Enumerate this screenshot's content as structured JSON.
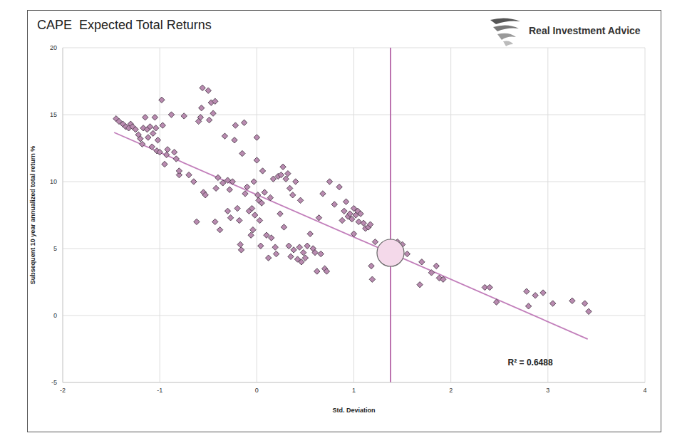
{
  "chart_data": {
    "type": "scatter",
    "title": "CAPE  Expected Total Returns",
    "brand": "Real Investment Advice",
    "x_label": "Std. Deviation",
    "y_label": "Subsequent 10 year annualized total return %",
    "xlim": [
      -2,
      4
    ],
    "xticks": [
      -2,
      -1,
      0,
      1,
      2,
      3,
      4
    ],
    "ylim": [
      -5,
      20
    ],
    "yticks": [
      -5,
      0,
      5,
      10,
      15,
      20
    ],
    "grid": true,
    "color": "#b98bb0",
    "marker": "diamond",
    "x": [
      -1.45,
      -1.42,
      -1.38,
      -1.35,
      -1.32,
      -1.3,
      -1.28,
      -1.25,
      -1.22,
      -1.2,
      -1.18,
      -1.17,
      -1.15,
      -1.13,
      -1.12,
      -1.1,
      -1.08,
      -1.07,
      -1.05,
      -1.04,
      -1.03,
      -1.02,
      -1.0,
      -0.98,
      -0.97,
      -0.95,
      -0.93,
      -0.92,
      -0.88,
      -0.85,
      -0.83,
      -0.8,
      -0.8,
      -0.75,
      -0.7,
      -0.65,
      -0.62,
      -0.6,
      -0.58,
      -0.57,
      -0.56,
      -0.55,
      -0.53,
      -0.5,
      -0.49,
      -0.47,
      -0.45,
      -0.43,
      -0.42,
      -0.43,
      -0.4,
      -0.38,
      -0.35,
      -0.33,
      -0.3,
      -0.3,
      -0.28,
      -0.27,
      -0.25,
      -0.23,
      -0.22,
      -0.2,
      -0.18,
      -0.17,
      -0.16,
      -0.15,
      -0.13,
      -0.12,
      -0.1,
      -0.08,
      -0.06,
      -0.05,
      -0.04,
      -0.03,
      -0.02,
      0.0,
      0.0,
      0.01,
      0.02,
      0.03,
      0.04,
      0.05,
      0.06,
      0.08,
      0.1,
      0.12,
      0.14,
      0.15,
      0.17,
      0.19,
      0.2,
      0.22,
      0.24,
      0.25,
      0.27,
      0.28,
      0.3,
      0.32,
      0.33,
      0.34,
      0.35,
      0.37,
      0.38,
      0.4,
      0.42,
      0.44,
      0.45,
      0.46,
      0.48,
      0.5,
      0.52,
      0.55,
      0.58,
      0.6,
      0.62,
      0.64,
      0.66,
      0.68,
      0.7,
      0.72,
      0.75,
      0.8,
      0.85,
      0.88,
      0.9,
      0.92,
      0.94,
      0.96,
      0.98,
      1.0,
      1.0,
      1.02,
      1.04,
      1.05,
      1.07,
      1.1,
      1.12,
      1.15,
      1.17,
      1.18,
      1.19,
      1.22,
      1.45,
      1.5,
      1.55,
      1.68,
      1.7,
      1.8,
      1.85,
      1.88,
      1.92,
      2.35,
      2.4,
      2.47,
      2.78,
      2.8,
      2.87,
      2.95,
      3.05,
      3.25,
      3.38,
      3.42
    ],
    "values": [
      14.7,
      14.5,
      14.3,
      14.1,
      14.0,
      14.3,
      14.1,
      13.9,
      13.5,
      13.2,
      12.8,
      14.0,
      14.8,
      13.9,
      13.3,
      14.1,
      12.6,
      13.6,
      14.8,
      14.0,
      12.3,
      13.1,
      12.2,
      16.1,
      14.2,
      11.3,
      12.0,
      12.4,
      15.0,
      12.2,
      11.7,
      10.5,
      10.8,
      14.9,
      10.5,
      10.0,
      7.0,
      14.5,
      14.8,
      15.5,
      17.0,
      9.2,
      9.0,
      16.8,
      14.6,
      15.9,
      15.1,
      16.0,
      9.5,
      7.0,
      10.3,
      6.4,
      9.9,
      13.4,
      10.1,
      7.8,
      9.4,
      7.3,
      10.0,
      13.1,
      14.2,
      8.0,
      7.1,
      5.3,
      4.9,
      12.1,
      14.4,
      9.1,
      9.6,
      7.8,
      6.0,
      8.0,
      6.4,
      10.0,
      7.5,
      11.6,
      13.3,
      9.0,
      8.6,
      7.1,
      5.2,
      8.4,
      10.8,
      9.2,
      6.0,
      4.3,
      8.8,
      5.8,
      10.2,
      5.1,
      4.6,
      10.4,
      7.6,
      10.5,
      11.1,
      6.6,
      10.2,
      10.6,
      5.2,
      9.5,
      4.4,
      9.0,
      4.9,
      10.0,
      4.2,
      5.1,
      8.6,
      4.0,
      4.7,
      4.3,
      5.2,
      6.1,
      5.0,
      4.7,
      3.3,
      7.3,
      4.6,
      9.1,
      3.5,
      3.3,
      10.0,
      8.3,
      9.6,
      7.1,
      7.8,
      8.5,
      7.4,
      7.6,
      7.2,
      8.0,
      6.1,
      7.5,
      7.8,
      7.0,
      7.6,
      6.9,
      6.5,
      6.6,
      6.8,
      3.7,
      2.7,
      5.5,
      5.5,
      5.3,
      4.6,
      2.3,
      4.0,
      3.2,
      3.7,
      2.8,
      2.7,
      2.1,
      2.1,
      1.0,
      1.8,
      0.7,
      1.5,
      1.7,
      0.9,
      1.1,
      0.9,
      0.3
    ],
    "trendline": {
      "x": [
        -1.47,
        3.41
      ],
      "y": [
        13.67,
        -1.76
      ],
      "color": "#c27fbb"
    },
    "vline": {
      "x": 1.378,
      "color": "#b565a7"
    },
    "highlight": {
      "x": 1.378,
      "y": 4.68
    },
    "annotations": [
      {
        "text": "R² = 0.6488",
        "x": 2.55,
        "y": -3.5
      }
    ]
  }
}
